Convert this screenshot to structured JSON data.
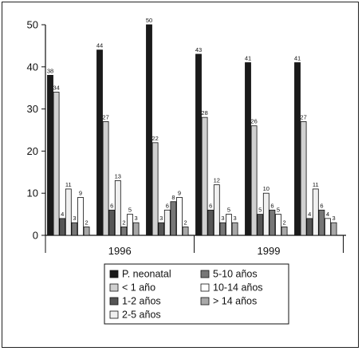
{
  "chart_data": {
    "type": "bar",
    "title": "",
    "xlabel": "",
    "ylabel": "",
    "ylim": [
      0,
      50
    ],
    "yticks": [
      0,
      10,
      20,
      30,
      40,
      50
    ],
    "grid": false,
    "legend_position": "bottom-center",
    "x_group_labels": [
      {
        "label": "1996",
        "spans_categories": [
          0,
          1,
          2
        ]
      },
      {
        "label": "1999",
        "spans_categories": [
          3,
          4,
          5
        ]
      }
    ],
    "categories": [
      "",
      "",
      "",
      "",
      "",
      ""
    ],
    "series": [
      {
        "name": "P. neonatal",
        "color": "#1a1a1a",
        "values": [
          38,
          44,
          50,
          43,
          41,
          41
        ]
      },
      {
        "name": "< 1 año",
        "color": "#d0d0d0",
        "values": [
          34,
          27,
          22,
          28,
          26,
          27
        ]
      },
      {
        "name": "1-2 años",
        "color": "#555555",
        "values": [
          4,
          6,
          3,
          6,
          5,
          4
        ]
      },
      {
        "name": "2-5 años",
        "color": "#f0f0f0",
        "values": [
          11,
          13,
          6,
          12,
          10,
          11
        ]
      },
      {
        "name": "5-10 años",
        "color": "#777777",
        "values": [
          3,
          2,
          8,
          3,
          6,
          6
        ]
      },
      {
        "name": "10-14 años",
        "color": "#ffffff",
        "values": [
          9,
          5,
          9,
          5,
          5,
          4
        ]
      },
      {
        "name": "> 14 años",
        "color": "#a8a8a8",
        "values": [
          2,
          3,
          2,
          3,
          2,
          3
        ]
      }
    ],
    "legend_order": [
      "P. neonatal",
      "< 1 año",
      "1-2 años",
      "2-5 años",
      "5-10 años",
      "10-14 años",
      "> 14 años"
    ]
  }
}
